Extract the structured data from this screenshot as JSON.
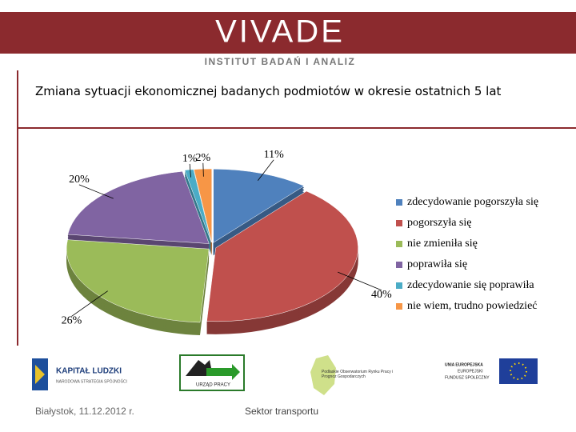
{
  "header": {
    "brand": "VIVADE",
    "subtitle": "INSTITUT BADAŃ I ANALIZ"
  },
  "chart_data": {
    "type": "pie",
    "title": "Zmiana sytuacji ekonomicznej badanych podmiotów w okresie ostatnich 5 lat",
    "categories": [
      "zdecydowanie pogorszyła się",
      "pogorszyła się",
      "nie zmieniła się",
      "poprawiła się",
      "zdecydowanie się poprawiła",
      "nie wiem, trudno powiedzieć"
    ],
    "values": [
      11,
      40,
      26,
      20,
      1,
      2
    ],
    "value_labels": [
      "11%",
      "40%",
      "26%",
      "20%",
      "1%",
      "2%"
    ],
    "colors": [
      "#4f81bd",
      "#c0504d",
      "#9bbb59",
      "#8064a2",
      "#4bacc6",
      "#f79646"
    ],
    "legend": "right"
  },
  "logos": {
    "kl_title": "KAPITAŁ LUDZKI",
    "kl_sub": "NARODOWA STRATEGIA SPÓJNOŚCI",
    "up": "URZĄD PRACY",
    "obs": "Podlaskie Obserwatorium Rynku Pracy i Prognoz Gospodarczych",
    "ue": "UNIA EUROPEJSKA",
    "efs1": "EUROPEJSKI",
    "efs2": "FUNDUSZ SPOŁECZNY"
  },
  "footer": {
    "place_date": "Białystok, 11.12.2012 r.",
    "sector": "Sektor transportu"
  }
}
